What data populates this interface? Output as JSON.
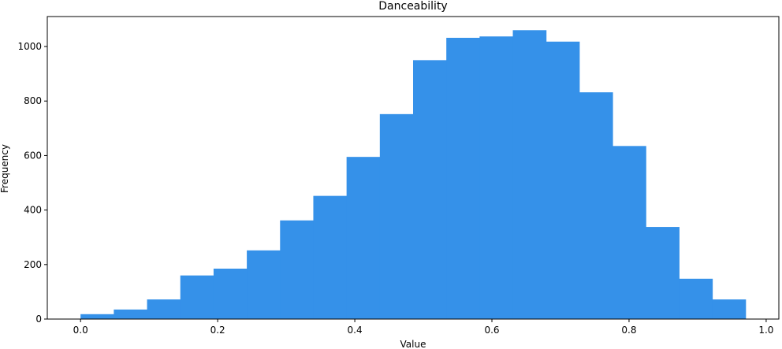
{
  "chart_data": {
    "type": "bar",
    "title": "Danceability",
    "xlabel": "Value",
    "ylabel": "Frequency",
    "xlim": [
      -0.0485,
      1.0185
    ],
    "ylim": [
      0,
      1110
    ],
    "xticks": [
      0.0,
      0.2,
      0.4,
      0.6,
      0.8,
      1.0
    ],
    "xtick_labels": [
      "0.0",
      "0.2",
      "0.4",
      "0.6",
      "0.8",
      "1.0"
    ],
    "yticks": [
      0,
      200,
      400,
      600,
      800,
      1000
    ],
    "ytick_labels": [
      "0",
      "200",
      "400",
      "600",
      "800",
      "1000"
    ],
    "grid": false,
    "bar_color": "#3591e9",
    "bins": [
      {
        "start": 0.0,
        "end": 0.0485,
        "value": 18
      },
      {
        "start": 0.0485,
        "end": 0.097,
        "value": 35
      },
      {
        "start": 0.097,
        "end": 0.1455,
        "value": 72
      },
      {
        "start": 0.1455,
        "end": 0.194,
        "value": 160
      },
      {
        "start": 0.194,
        "end": 0.2425,
        "value": 185
      },
      {
        "start": 0.2425,
        "end": 0.291,
        "value": 252
      },
      {
        "start": 0.291,
        "end": 0.3395,
        "value": 362
      },
      {
        "start": 0.3395,
        "end": 0.388,
        "value": 452
      },
      {
        "start": 0.388,
        "end": 0.4365,
        "value": 595
      },
      {
        "start": 0.4365,
        "end": 0.485,
        "value": 752
      },
      {
        "start": 0.485,
        "end": 0.5335,
        "value": 950
      },
      {
        "start": 0.5335,
        "end": 0.582,
        "value": 1032
      },
      {
        "start": 0.582,
        "end": 0.6305,
        "value": 1037
      },
      {
        "start": 0.6305,
        "end": 0.679,
        "value": 1060
      },
      {
        "start": 0.679,
        "end": 0.7275,
        "value": 1018
      },
      {
        "start": 0.7275,
        "end": 0.776,
        "value": 832
      },
      {
        "start": 0.776,
        "end": 0.8245,
        "value": 635
      },
      {
        "start": 0.8245,
        "end": 0.873,
        "value": 338
      },
      {
        "start": 0.873,
        "end": 0.9215,
        "value": 148
      },
      {
        "start": 0.9215,
        "end": 0.97,
        "value": 72
      }
    ]
  }
}
